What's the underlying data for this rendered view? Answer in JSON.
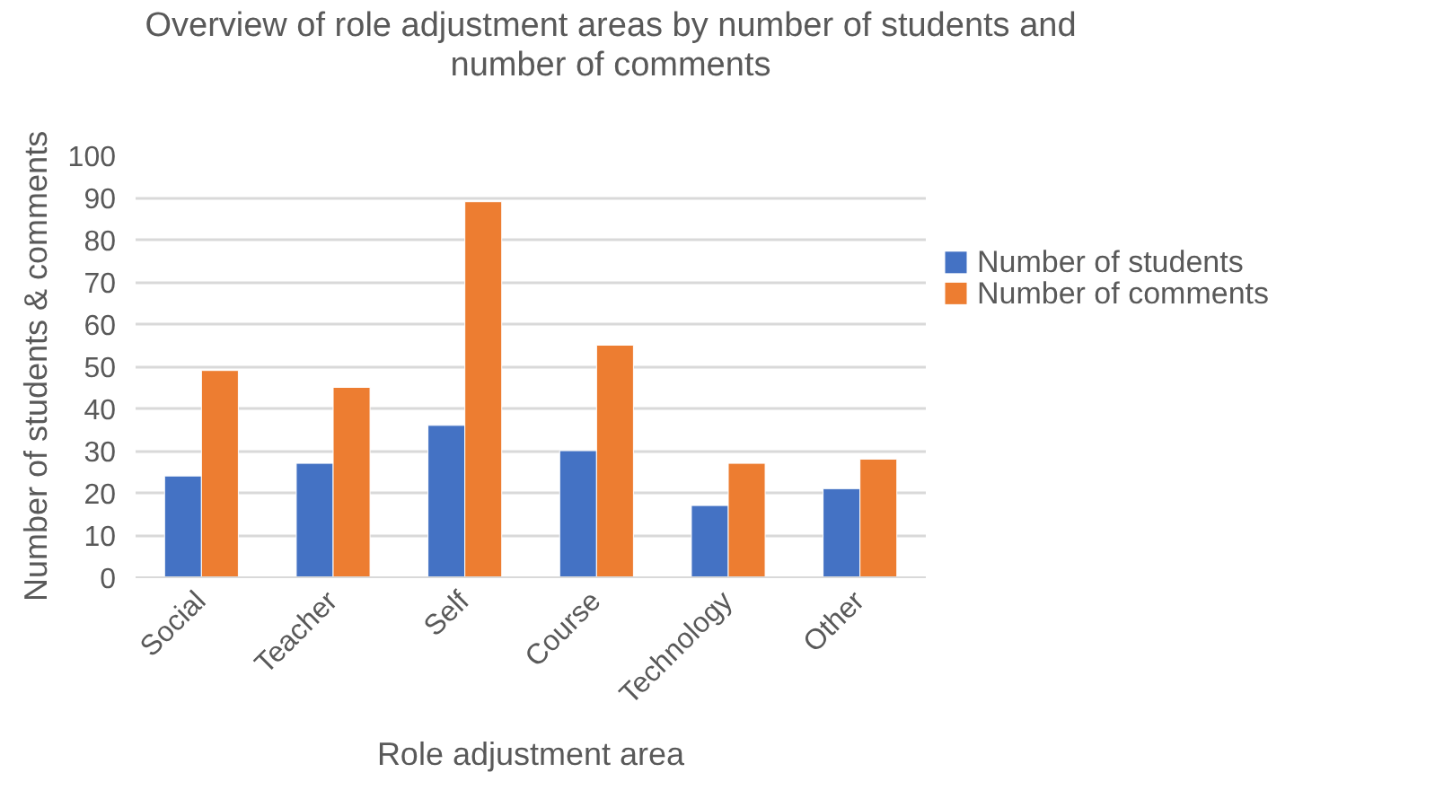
{
  "chart_data": {
    "type": "bar",
    "title": "Overview of role adjustment areas by number of students and number of comments",
    "xlabel": "Role adjustment area",
    "ylabel": "Number of students & comments",
    "categories": [
      "Social",
      "Teacher",
      "Self",
      "Course",
      "Technology",
      "Other"
    ],
    "series": [
      {
        "name": "Number of students",
        "color": "#4472c4",
        "values": [
          24,
          27,
          36,
          30,
          17,
          21
        ]
      },
      {
        "name": "Number of comments",
        "color": "#ed7d31",
        "values": [
          49,
          45,
          89,
          55,
          27,
          28
        ]
      }
    ],
    "ylim": [
      0,
      100
    ],
    "yticks": [
      0,
      10,
      20,
      30,
      40,
      50,
      60,
      70,
      80,
      90,
      100
    ],
    "grid": "y",
    "legend": "right"
  }
}
